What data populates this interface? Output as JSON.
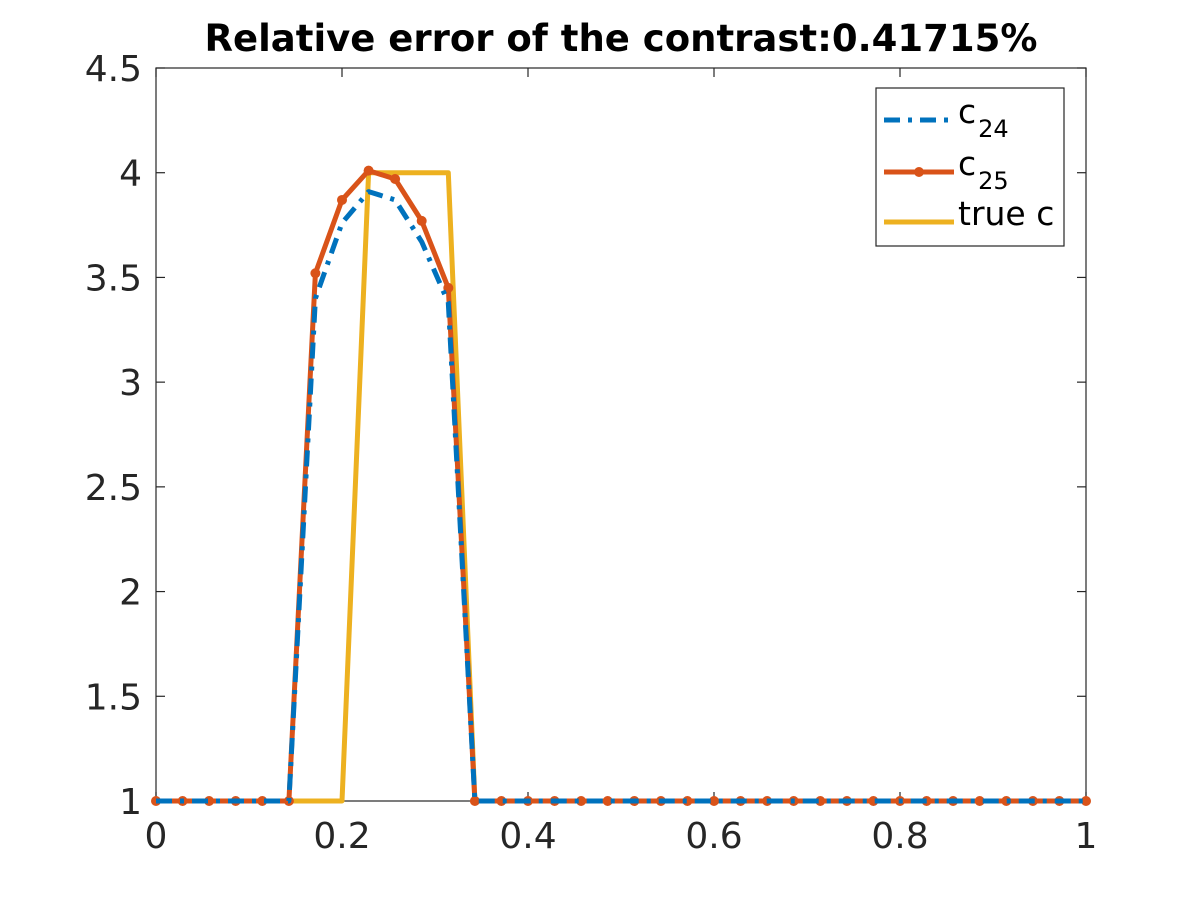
{
  "chart_data": {
    "type": "line",
    "title": "Relative error of the contrast:0.41715%",
    "xlabel": "",
    "ylabel": "",
    "xlim": [
      0,
      1
    ],
    "ylim": [
      1,
      4.5
    ],
    "xticks": [
      "0",
      "0.2",
      "0.4",
      "0.6",
      "0.8",
      "1"
    ],
    "yticks": [
      "1",
      "1.5",
      "2",
      "2.5",
      "3",
      "3.5",
      "4",
      "4.5"
    ],
    "grid": false,
    "legend_position": "top-right",
    "series": [
      {
        "name": "c",
        "name_subscript": "24",
        "color": "#0072bd",
        "style": "dash-dot",
        "markers": false,
        "x": [
          0,
          0.0286,
          0.0571,
          0.0857,
          0.1143,
          0.1429,
          0.1714,
          0.2,
          0.2286,
          0.2571,
          0.2857,
          0.3143,
          0.3429,
          0.3714,
          0.4,
          0.4286,
          0.4571,
          0.4857,
          0.5143,
          0.5429,
          0.5714,
          0.6,
          0.6286,
          0.6571,
          0.6857,
          0.7143,
          0.7429,
          0.7714,
          0.8,
          0.8286,
          0.8571,
          0.8857,
          0.9143,
          0.9429,
          0.9714,
          1
        ],
        "y": [
          1,
          1,
          1,
          1,
          1,
          1,
          3.4,
          3.76,
          3.91,
          3.87,
          3.67,
          3.38,
          1,
          1,
          1,
          1,
          1,
          1,
          1,
          1,
          1,
          1,
          1,
          1,
          1,
          1,
          1,
          1,
          1,
          1,
          1,
          1,
          1,
          1,
          1,
          1
        ]
      },
      {
        "name": "c",
        "name_subscript": "25",
        "color": "#d95319",
        "style": "solid",
        "markers": true,
        "x": [
          0,
          0.0286,
          0.0571,
          0.0857,
          0.1143,
          0.1429,
          0.1714,
          0.2,
          0.2286,
          0.2571,
          0.2857,
          0.3143,
          0.3429,
          0.3714,
          0.4,
          0.4286,
          0.4571,
          0.4857,
          0.5143,
          0.5429,
          0.5714,
          0.6,
          0.6286,
          0.6571,
          0.6857,
          0.7143,
          0.7429,
          0.7714,
          0.8,
          0.8286,
          0.8571,
          0.8857,
          0.9143,
          0.9429,
          0.9714,
          1
        ],
        "y": [
          1,
          1,
          1,
          1,
          1,
          1,
          3.52,
          3.87,
          4.01,
          3.97,
          3.77,
          3.45,
          1,
          1,
          1,
          1,
          1,
          1,
          1,
          1,
          1,
          1,
          1,
          1,
          1,
          1,
          1,
          1,
          1,
          1,
          1,
          1,
          1,
          1,
          1,
          1
        ]
      },
      {
        "name": "true c",
        "name_subscript": "",
        "color": "#edb120",
        "style": "solid",
        "markers": false,
        "x": [
          0,
          0.2,
          0.2286,
          0.3143,
          0.3429,
          1
        ],
        "y": [
          1,
          1,
          4,
          4,
          1,
          1
        ]
      }
    ]
  }
}
